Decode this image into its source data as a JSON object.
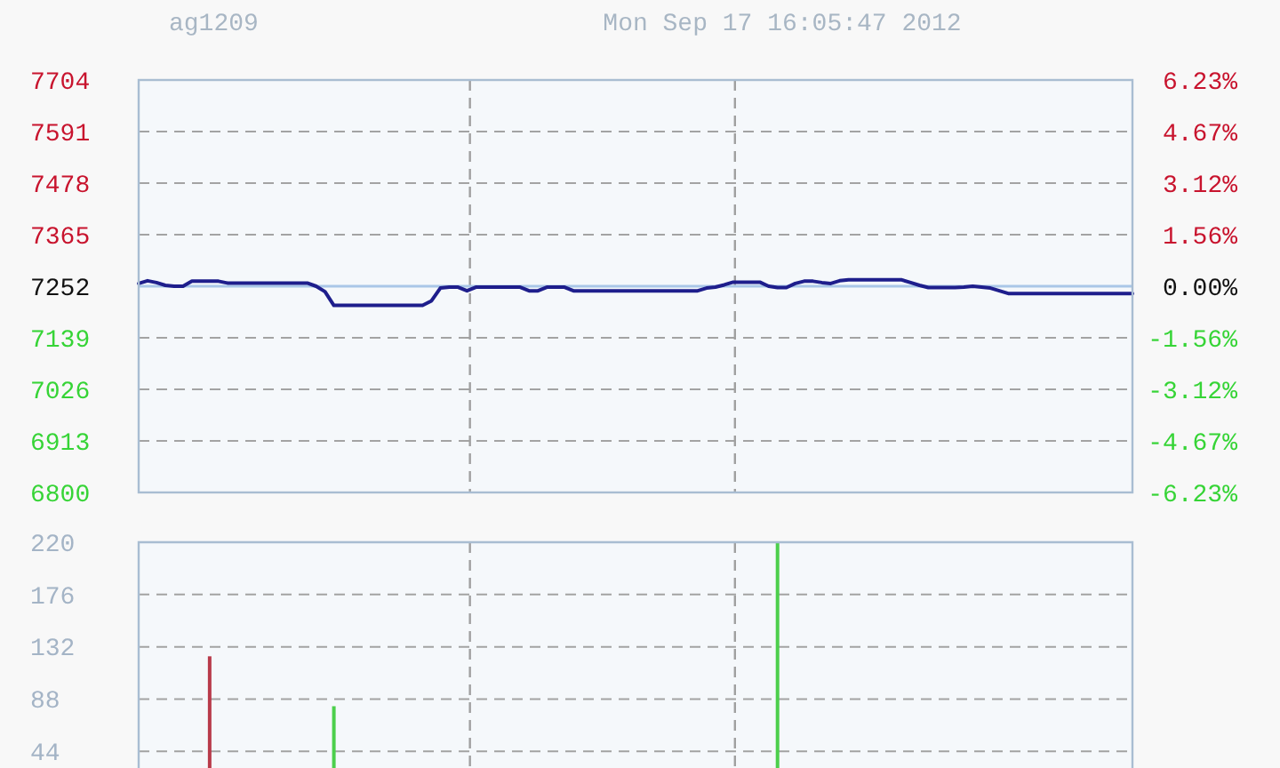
{
  "chart_data": [
    {
      "type": "line",
      "title": "ag1209",
      "subtitle": "Mon Sep 17 16:05:47 2012",
      "categories": [
        null,
        null,
        null,
        null,
        null,
        null,
        null,
        null,
        null,
        null,
        null,
        null,
        null,
        null,
        null,
        null,
        null,
        null,
        null,
        null,
        null,
        null,
        null,
        null,
        null,
        null,
        null,
        null,
        null,
        null,
        null,
        null,
        null,
        null,
        null,
        null,
        null,
        null,
        null,
        null,
        null,
        null,
        null,
        null,
        null,
        null,
        null,
        null,
        null,
        null,
        null,
        null,
        null,
        null,
        null,
        null,
        null,
        null,
        null,
        null,
        null,
        null,
        null,
        null,
        null,
        null,
        null,
        null,
        null,
        null,
        null,
        null,
        null,
        null,
        null,
        null,
        null,
        null,
        null,
        null,
        null,
        null,
        null,
        null,
        null,
        null,
        null,
        null,
        null,
        null,
        null,
        null,
        null,
        null,
        null,
        null,
        null,
        null,
        null,
        null,
        null,
        null,
        null,
        null,
        null,
        null,
        null,
        null,
        null,
        null,
        null,
        null,
        null
      ],
      "values": [
        7258,
        7264,
        7260,
        7254,
        7252,
        7252,
        7263,
        7263,
        7263,
        7263,
        7259,
        7259,
        7259,
        7259,
        7259,
        7259,
        7259,
        7259,
        7259,
        7259,
        7252,
        7240,
        7210,
        7210,
        7210,
        7210,
        7210,
        7210,
        7210,
        7210,
        7210,
        7210,
        7210,
        7220,
        7248,
        7250,
        7250,
        7242,
        7250,
        7250,
        7250,
        7250,
        7250,
        7250,
        7242,
        7242,
        7250,
        7250,
        7250,
        7242,
        7242,
        7242,
        7242,
        7242,
        7242,
        7242,
        7242,
        7242,
        7242,
        7242,
        7242,
        7242,
        7242,
        7242,
        7248,
        7250,
        7255,
        7261,
        7261,
        7261,
        7261,
        7252,
        7249,
        7249,
        7258,
        7263,
        7263,
        7260,
        7258,
        7264,
        7266,
        7266,
        7266,
        7266,
        7266,
        7266,
        7266,
        7260,
        7254,
        7249,
        7249,
        7249,
        7249,
        7250,
        7252,
        7250,
        7248,
        7242,
        7236,
        7236,
        7236,
        7236,
        7236,
        7236,
        7236,
        7236,
        7236,
        7236,
        7236,
        7236,
        7236,
        7236,
        7236
      ],
      "color": "#1e1e8c",
      "ylim": [
        6800,
        7704
      ],
      "yticks": [
        6800,
        6913,
        7026,
        7139,
        7252,
        7365,
        7478,
        7591,
        7704
      ],
      "y2lim": [
        -6.23,
        6.23
      ],
      "y2ticks": [
        {
          "value": -6.23,
          "label": "-6.23%"
        },
        {
          "value": -4.67,
          "label": "-4.67%"
        },
        {
          "value": -3.12,
          "label": "-3.12%"
        },
        {
          "value": -1.56,
          "label": "-1.56%"
        },
        {
          "value": 0,
          "label": "0.00%"
        },
        {
          "value": 1.56,
          "label": "1.56%"
        },
        {
          "value": 3.12,
          "label": "3.12%"
        },
        {
          "value": 4.67,
          "label": "4.67%"
        },
        {
          "value": 6.23,
          "label": "6.23%"
        }
      ],
      "grid": "y",
      "ref_lines": [
        {
          "axis": "y",
          "value": 7252,
          "color": "#a9c7e8"
        }
      ]
    },
    {
      "type": "bar",
      "categories": [
        null,
        null,
        null,
        null,
        null,
        null,
        null,
        null,
        null,
        null,
        null,
        null,
        null,
        null,
        null,
        null,
        null,
        null,
        null,
        null,
        null,
        null,
        null,
        null,
        null,
        null,
        null,
        null,
        null,
        null,
        null,
        null,
        null,
        null,
        null,
        null,
        null,
        null,
        null,
        null,
        null,
        null,
        null,
        null,
        null,
        null,
        null,
        null,
        null,
        null,
        null,
        null,
        null,
        null,
        null,
        null,
        null,
        null,
        null,
        null,
        null,
        null,
        null,
        null,
        null,
        null,
        null,
        null,
        null,
        null,
        null,
        null,
        null,
        null,
        null,
        null,
        null,
        null,
        null,
        null,
        null,
        null,
        null,
        null,
        null,
        null,
        null,
        null,
        null,
        null,
        null,
        null,
        null,
        null,
        null,
        null,
        null,
        null,
        null,
        null,
        null,
        null,
        null,
        null,
        null,
        null,
        null,
        null,
        null,
        null,
        null,
        null,
        null
      ],
      "values": [
        null,
        null,
        null,
        null,
        null,
        null,
        null,
        null,
        124,
        null,
        null,
        null,
        null,
        null,
        null,
        null,
        null,
        null,
        null,
        null,
        null,
        null,
        82,
        null,
        null,
        null,
        null,
        null,
        null,
        null,
        null,
        null,
        null,
        null,
        null,
        null,
        null,
        null,
        null,
        null,
        null,
        null,
        null,
        null,
        null,
        null,
        null,
        null,
        null,
        null,
        null,
        null,
        null,
        null,
        null,
        null,
        null,
        null,
        null,
        null,
        null,
        null,
        null,
        null,
        null,
        null,
        null,
        null,
        null,
        null,
        null,
        null,
        220,
        null,
        null,
        null,
        null,
        null,
        null,
        null,
        null,
        null,
        null,
        null,
        null,
        null,
        null,
        null,
        null,
        null,
        null,
        null,
        null,
        null,
        null,
        null,
        null,
        null,
        null,
        null,
        null,
        null,
        null,
        null,
        null,
        null,
        null,
        null,
        null,
        null,
        null,
        null,
        null
      ],
      "colors": [
        null,
        null,
        null,
        null,
        null,
        null,
        null,
        null,
        "#b83a4a",
        null,
        null,
        null,
        null,
        null,
        null,
        null,
        null,
        null,
        null,
        null,
        null,
        null,
        "#4ccf4c",
        null,
        null,
        null,
        null,
        null,
        null,
        null,
        null,
        null,
        null,
        null,
        null,
        null,
        null,
        null,
        null,
        null,
        null,
        null,
        null,
        null,
        null,
        null,
        null,
        null,
        null,
        null,
        null,
        null,
        null,
        null,
        null,
        null,
        null,
        null,
        null,
        null,
        null,
        null,
        null,
        null,
        null,
        null,
        null,
        null,
        null,
        null,
        null,
        null,
        "#4ccf4c",
        null,
        null,
        null,
        null,
        null,
        null,
        null,
        null,
        null,
        null,
        null,
        null,
        null,
        null,
        null,
        null,
        null,
        null,
        null,
        null,
        null,
        null,
        null,
        null,
        null,
        null,
        null,
        null,
        null,
        null,
        null,
        null,
        null,
        null,
        null,
        null,
        null,
        null,
        null,
        null
      ],
      "ylim": [
        30,
        220
      ],
      "yticks": [
        44,
        88,
        132,
        176,
        220
      ],
      "grid": "y"
    }
  ]
}
